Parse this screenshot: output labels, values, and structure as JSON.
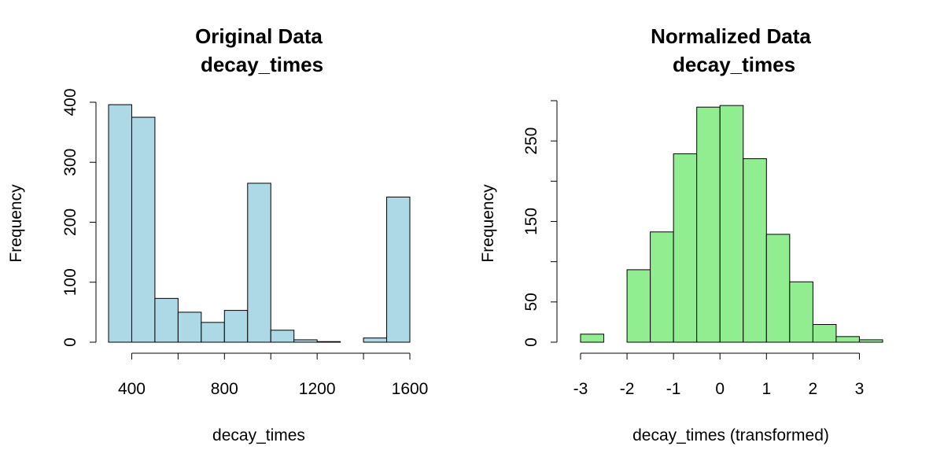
{
  "chart_data": [
    {
      "type": "bar",
      "title": "Original Data",
      "subtitle": "decay_times",
      "xlabel": "decay_times",
      "ylabel": "Frequency",
      "color": "#add8e6",
      "xlim": [
        300,
        1600
      ],
      "ylim": [
        0,
        400
      ],
      "xticks": [
        400,
        800,
        1200,
        1600
      ],
      "xtick_marks": [
        400,
        600,
        800,
        1000,
        1200,
        1400,
        1600
      ],
      "yticks": [
        0,
        100,
        200,
        300,
        400
      ],
      "bins": [
        {
          "x0": 300,
          "x1": 400,
          "value": 396
        },
        {
          "x0": 400,
          "x1": 500,
          "value": 375
        },
        {
          "x0": 500,
          "x1": 600,
          "value": 73
        },
        {
          "x0": 600,
          "x1": 700,
          "value": 50
        },
        {
          "x0": 700,
          "x1": 800,
          "value": 33
        },
        {
          "x0": 800,
          "x1": 900,
          "value": 53
        },
        {
          "x0": 900,
          "x1": 1000,
          "value": 265
        },
        {
          "x0": 1000,
          "x1": 1100,
          "value": 20
        },
        {
          "x0": 1100,
          "x1": 1200,
          "value": 4
        },
        {
          "x0": 1200,
          "x1": 1300,
          "value": 1
        },
        {
          "x0": 1300,
          "x1": 1400,
          "value": 0
        },
        {
          "x0": 1400,
          "x1": 1500,
          "value": 7
        },
        {
          "x0": 1500,
          "x1": 1600,
          "value": 242
        }
      ]
    },
    {
      "type": "bar",
      "title": "Normalized Data",
      "subtitle": "decay_times",
      "xlabel": "decay_times (transformed)",
      "ylabel": "Frequency",
      "color": "#90ee90",
      "xlim": [
        -3,
        3.5
      ],
      "ylim": [
        0,
        300
      ],
      "xticks": [
        -3,
        -2,
        -1,
        0,
        1,
        2,
        3
      ],
      "xtick_marks": [
        -3,
        -2,
        -1,
        0,
        1,
        2,
        3
      ],
      "yticks": [
        0,
        50,
        100,
        150,
        200,
        250,
        300
      ],
      "yticklabels": [
        "0",
        "50",
        "",
        "150",
        "",
        "250",
        ""
      ],
      "bins": [
        {
          "x0": -3.0,
          "x1": -2.5,
          "value": 10
        },
        {
          "x0": -2.5,
          "x1": -2.0,
          "value": 0
        },
        {
          "x0": -2.0,
          "x1": -1.5,
          "value": 90
        },
        {
          "x0": -1.5,
          "x1": -1.0,
          "value": 137
        },
        {
          "x0": -1.0,
          "x1": -0.5,
          "value": 234
        },
        {
          "x0": -0.5,
          "x1": 0.0,
          "value": 292
        },
        {
          "x0": 0.0,
          "x1": 0.5,
          "value": 294
        },
        {
          "x0": 0.5,
          "x1": 1.0,
          "value": 228
        },
        {
          "x0": 1.0,
          "x1": 1.5,
          "value": 134
        },
        {
          "x0": 1.5,
          "x1": 2.0,
          "value": 75
        },
        {
          "x0": 2.0,
          "x1": 2.5,
          "value": 22
        },
        {
          "x0": 2.5,
          "x1": 3.0,
          "value": 7
        },
        {
          "x0": 3.0,
          "x1": 3.5,
          "value": 3
        }
      ]
    }
  ]
}
